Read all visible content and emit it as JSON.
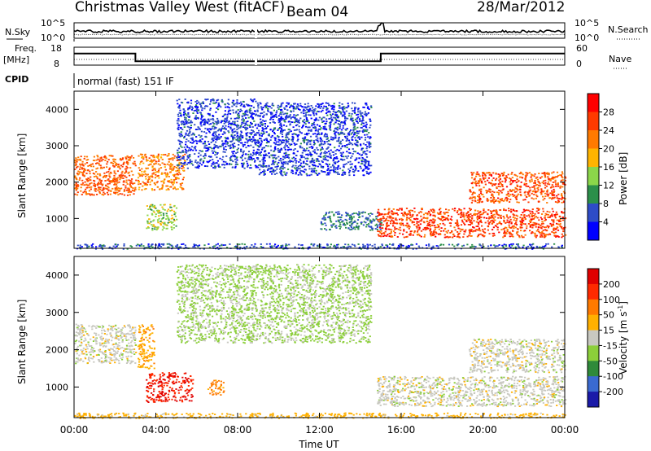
{
  "header": {
    "title": "Christmas Valley West (fitACF)",
    "beam": "Beam 04",
    "date": "28/Mar/2012"
  },
  "top_panels": {
    "nsky_label": "N.Sky",
    "nsearch_label": "N.Search",
    "noise_ticks": [
      "10^5",
      "10^0"
    ],
    "freq_label_line1": "Freq.",
    "freq_label_line2": "[MHz]",
    "freq_ticks": [
      "18",
      "8"
    ],
    "nave_label": "Nave",
    "nave_ticks": [
      "60",
      "0"
    ],
    "cpid_label": "CPID",
    "cpid_text": "normal (fast) 151 IF"
  },
  "colorbars": {
    "power": {
      "label": "Power [dB]",
      "ticks": [
        "28",
        "24",
        "20",
        "16",
        "12",
        "8",
        "4"
      ],
      "colors": [
        "#0000ff",
        "#2e4cc7",
        "#2b8f4a",
        "#8bd64a",
        "#ffb400",
        "#ff7a00",
        "#ff3a00",
        "#ff0000"
      ]
    },
    "velocity": {
      "label": "Velocity [m s",
      "label_sup": "-1",
      "label_end": "]",
      "ticks": [
        "200",
        "100",
        "50",
        "15",
        "-15",
        "-50",
        "-100",
        "-200"
      ],
      "colors": [
        "#1a1aa8",
        "#3a6ad0",
        "#2f8a3a",
        "#8ccf3a",
        "#c8c8c0",
        "#ffb000",
        "#ff7a00",
        "#ff2a00",
        "#e00000"
      ]
    }
  },
  "axes": {
    "ylabel": "Slant Range [km]",
    "yticks": [
      "4000",
      "3000",
      "2000",
      "1000"
    ],
    "xticks": [
      "00:00",
      "04:00",
      "08:00",
      "12:00",
      "16:00",
      "20:00",
      "00:00"
    ],
    "xlabel": "Time UT"
  },
  "chart_data": {
    "type": "heatmap",
    "title": "Christmas Valley West (fitACF)",
    "x_range_hours": [
      0,
      24
    ],
    "y_range_km": [
      180,
      4500
    ],
    "panels": [
      {
        "name": "power",
        "unit": "dB",
        "regions": [
          {
            "t0": 0.0,
            "t1": 3.0,
            "r0": 1650,
            "r1": 2750,
            "value": 24
          },
          {
            "t0": 3.1,
            "t1": 5.4,
            "r0": 1800,
            "r1": 2800,
            "value": 22
          },
          {
            "t0": 3.5,
            "t1": 5.0,
            "r0": 700,
            "r1": 1400,
            "value": 14
          },
          {
            "t0": 5.0,
            "t1": 9.0,
            "r0": 2400,
            "r1": 4300,
            "value": 5
          },
          {
            "t0": 9.0,
            "t1": 14.5,
            "r0": 2200,
            "r1": 4200,
            "value": 5
          },
          {
            "t0": 12.0,
            "t1": 15.0,
            "r0": 700,
            "r1": 1200,
            "value": 8
          },
          {
            "t0": 14.8,
            "t1": 24.0,
            "r0": 500,
            "r1": 1300,
            "value": 26
          },
          {
            "t0": 19.3,
            "t1": 24.0,
            "r0": 1450,
            "r1": 2300,
            "value": 25
          },
          {
            "t0": 0.0,
            "t1": 24.0,
            "r0": 180,
            "r1": 320,
            "value": 6
          }
        ]
      },
      {
        "name": "velocity",
        "unit": "m s-1",
        "regions": [
          {
            "t0": 0.0,
            "t1": 3.0,
            "r0": 1650,
            "r1": 2700,
            "value": 0
          },
          {
            "t0": 3.1,
            "t1": 3.9,
            "r0": 1500,
            "r1": 2700,
            "value": -40
          },
          {
            "t0": 3.5,
            "t1": 5.8,
            "r0": 600,
            "r1": 1400,
            "value": -200
          },
          {
            "t0": 6.5,
            "t1": 7.3,
            "r0": 800,
            "r1": 1200,
            "value": -60
          },
          {
            "t0": 14.8,
            "t1": 24.0,
            "r0": 500,
            "r1": 1300,
            "value": 0
          },
          {
            "t0": 19.3,
            "t1": 24.0,
            "r0": 1400,
            "r1": 2300,
            "value": 0
          },
          {
            "t0": 5.0,
            "t1": 14.5,
            "r0": 2200,
            "r1": 4300,
            "value": 20
          },
          {
            "t0": 0.0,
            "t1": 24.0,
            "r0": 180,
            "r1": 320,
            "value": -30
          }
        ]
      }
    ],
    "frequency_MHz": [
      {
        "t0": 0.0,
        "t1": 3.0,
        "value": 14.5
      },
      {
        "t0": 3.0,
        "t1": 15.0,
        "value": 10.2
      },
      {
        "t0": 15.0,
        "t1": 24.0,
        "value": 14.5
      }
    ]
  }
}
